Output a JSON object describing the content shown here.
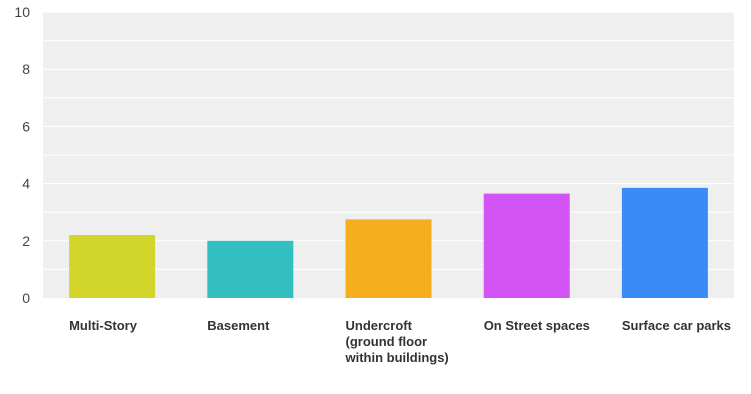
{
  "chart_data": {
    "type": "bar",
    "title": "",
    "xlabel": "",
    "ylabel": "",
    "categories": [
      "Multi-Story",
      "Basement",
      "Undercroft (ground floor within buildings)",
      "On Street spaces",
      "Surface car parks"
    ],
    "values": [
      2.2,
      2.0,
      2.75,
      3.65,
      3.85
    ],
    "colors": [
      "#d2d52a",
      "#33bfbf",
      "#f5ae1d",
      "#d254f5",
      "#3b8bf7"
    ],
    "ylim": [
      0,
      10
    ],
    "yticks": [
      "0",
      "2",
      "4",
      "6",
      "8",
      "10"
    ],
    "grid": true,
    "legend": "none"
  }
}
